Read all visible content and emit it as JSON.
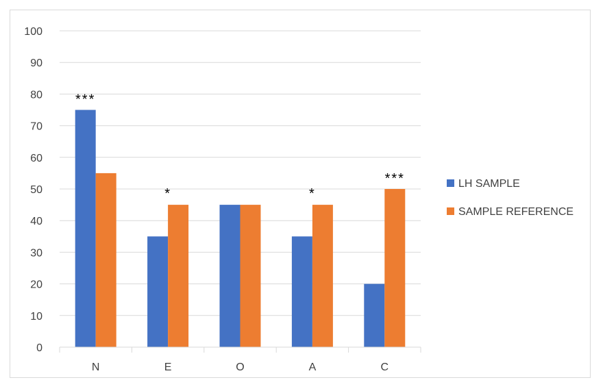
{
  "chart_data": {
    "type": "bar",
    "categories": [
      "N",
      "E",
      "O",
      "A",
      "C"
    ],
    "series": [
      {
        "name": "LH SAMPLE",
        "values": [
          75,
          35,
          45,
          35,
          20
        ],
        "color": "#4472c4"
      },
      {
        "name": "SAMPLE REFERENCE",
        "values": [
          55,
          45,
          45,
          45,
          50
        ],
        "color": "#ed7d31"
      }
    ],
    "annotations": [
      "***",
      "*",
      "",
      "*",
      "***"
    ],
    "yticks": [
      0,
      10,
      20,
      30,
      40,
      50,
      60,
      70,
      80,
      90,
      100
    ],
    "ylim": [
      0,
      100
    ],
    "grid": true,
    "legend": "right"
  }
}
